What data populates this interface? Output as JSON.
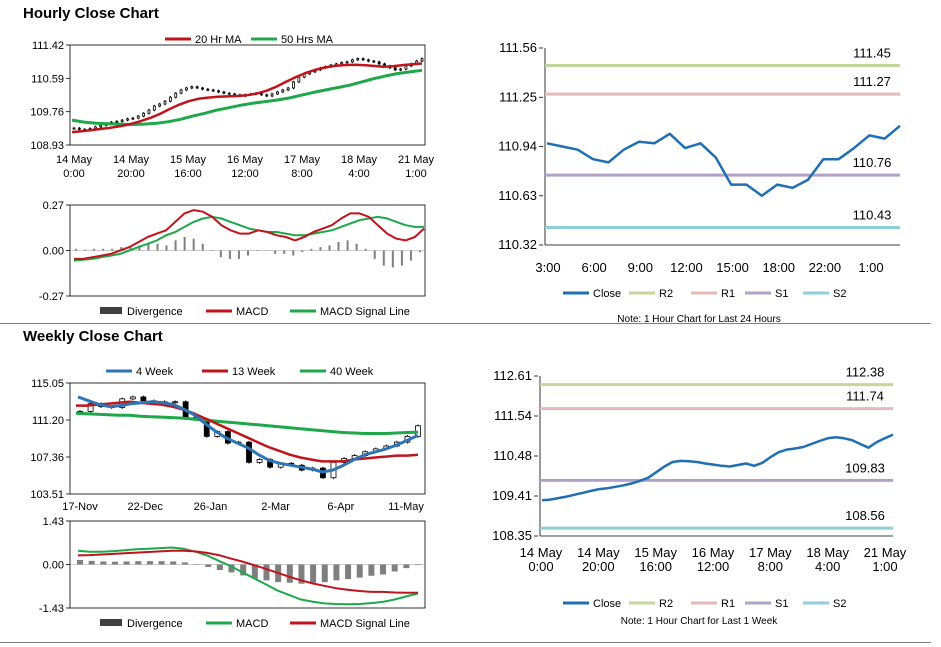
{
  "sections": {
    "hourly_title": "Hourly Close Chart",
    "weekly_title": "Weekly Close Chart"
  },
  "colors": {
    "red": "#c0141b",
    "green": "#1ea84a",
    "blue": "#2e75b6",
    "gray": "#7f7f7f",
    "candle_bar": "#404040",
    "r2": "#c4d79b",
    "r1": "#e6b9b8",
    "s1": "#b3a2c7",
    "s2": "#92cddc",
    "close": "#1f6fb2"
  },
  "chart_data": [
    {
      "id": "hourly-price",
      "type": "candlestick",
      "title": "Hourly Close Chart",
      "ylim": [
        108.93,
        111.42
      ],
      "yticks": [
        "111.42",
        "110.59",
        "109.76",
        "108.93"
      ],
      "xticks": [
        [
          "14 May",
          "0:00"
        ],
        [
          "14 May",
          "20:00"
        ],
        [
          "15 May",
          "16:00"
        ],
        [
          "16 May",
          "12:00"
        ],
        [
          "17 May",
          "8:00"
        ],
        [
          "18 May",
          "4:00"
        ],
        [
          "21 May",
          "1:00"
        ]
      ],
      "legend": [
        "20 Hr MA",
        "50 Hrs MA"
      ],
      "close": [
        109.35,
        109.32,
        109.3,
        109.34,
        109.38,
        109.42,
        109.45,
        109.5,
        109.52,
        109.55,
        109.58,
        109.6,
        109.65,
        109.72,
        109.8,
        109.9,
        109.95,
        110.02,
        110.12,
        110.22,
        110.3,
        110.35,
        110.38,
        110.35,
        110.32,
        110.3,
        110.28,
        110.25,
        110.22,
        110.2,
        110.18,
        110.15,
        110.18,
        110.2,
        110.22,
        110.18,
        110.15,
        110.2,
        110.25,
        110.3,
        110.35,
        110.5,
        110.62,
        110.7,
        110.75,
        110.8,
        110.85,
        110.88,
        110.92,
        110.95,
        110.98,
        111.0,
        111.05,
        111.08,
        111.05,
        111.02,
        111.0,
        110.95,
        110.9,
        110.85,
        110.8,
        110.82,
        110.9,
        110.95,
        111.02,
        111.08
      ],
      "ma20": [
        109.25,
        109.27,
        109.3,
        109.33,
        109.36,
        109.4,
        109.45,
        109.52,
        109.6,
        109.7,
        109.82,
        109.93,
        110.02,
        110.08,
        110.11,
        110.13,
        110.14,
        110.15,
        110.17,
        110.21,
        110.28,
        110.38,
        110.5,
        110.62,
        110.72,
        110.8,
        110.86,
        110.9,
        110.92,
        110.93,
        110.92,
        110.9,
        110.88,
        110.89,
        110.92,
        110.94,
        110.96
      ],
      "ma50": [
        109.55,
        109.5,
        109.47,
        109.46,
        109.45,
        109.44,
        109.45,
        109.47,
        109.51,
        109.57,
        109.65,
        109.72,
        109.8,
        109.86,
        109.92,
        109.97,
        110.01,
        110.05,
        110.1,
        110.17,
        110.24,
        110.3,
        110.36,
        110.42,
        110.5,
        110.58,
        110.65,
        110.71,
        110.75,
        110.79
      ]
    },
    {
      "id": "hourly-macd",
      "type": "macd",
      "ylim": [
        -0.27,
        0.27
      ],
      "yticks": [
        "0.27",
        "0.00",
        "-0.27"
      ],
      "legend": [
        "Divergence",
        "MACD",
        "MACD Signal Line"
      ],
      "macd": [
        -0.05,
        -0.05,
        -0.04,
        -0.03,
        -0.02,
        0.0,
        0.02,
        0.05,
        0.08,
        0.1,
        0.12,
        0.17,
        0.22,
        0.24,
        0.23,
        0.2,
        0.15,
        0.12,
        0.1,
        0.1,
        0.12,
        0.11,
        0.09,
        0.08,
        0.06,
        0.08,
        0.11,
        0.13,
        0.15,
        0.19,
        0.22,
        0.22,
        0.2,
        0.15,
        0.1,
        0.07,
        0.06,
        0.08,
        0.13
      ],
      "signal": [
        -0.06,
        -0.055,
        -0.05,
        -0.04,
        -0.03,
        -0.02,
        0.0,
        0.02,
        0.04,
        0.06,
        0.09,
        0.11,
        0.14,
        0.17,
        0.19,
        0.2,
        0.19,
        0.17,
        0.15,
        0.13,
        0.12,
        0.11,
        0.11,
        0.1,
        0.09,
        0.09,
        0.1,
        0.11,
        0.12,
        0.14,
        0.16,
        0.18,
        0.19,
        0.2,
        0.19,
        0.17,
        0.15,
        0.14,
        0.14
      ],
      "divergence": [
        0.01,
        0.005,
        0.01,
        0.01,
        0.01,
        0.02,
        0.02,
        0.03,
        0.04,
        0.04,
        0.03,
        0.06,
        0.08,
        0.07,
        0.04,
        0.0,
        -0.04,
        -0.05,
        -0.05,
        -0.03,
        0.0,
        0.0,
        -0.02,
        -0.02,
        -0.03,
        -0.01,
        0.01,
        0.02,
        0.03,
        0.05,
        0.06,
        0.04,
        0.01,
        -0.05,
        -0.09,
        -0.1,
        -0.09,
        -0.06,
        -0.01
      ]
    },
    {
      "id": "daily-levels",
      "type": "line",
      "ylim": [
        110.32,
        111.56
      ],
      "yticks": [
        "111.56",
        "111.25",
        "110.94",
        "110.63",
        "110.32"
      ],
      "xticks": [
        "3:00",
        "6:00",
        "9:00",
        "12:00",
        "15:00",
        "18:00",
        "22:00",
        "1:00"
      ],
      "levels": [
        {
          "name": "R2",
          "value": 111.45,
          "label": "111.45"
        },
        {
          "name": "R1",
          "value": 111.27,
          "label": "111.27"
        },
        {
          "name": "S1",
          "value": 110.76,
          "label": "110.76"
        },
        {
          "name": "S2",
          "value": 110.43,
          "label": "110.43"
        }
      ],
      "close": [
        110.96,
        110.94,
        110.92,
        110.86,
        110.84,
        110.92,
        110.97,
        110.96,
        111.02,
        110.93,
        110.96,
        110.87,
        110.7,
        110.7,
        110.63,
        110.7,
        110.68,
        110.73,
        110.86,
        110.86,
        110.93,
        111.01,
        110.99,
        111.07
      ],
      "legend": [
        "Close",
        "R2",
        "R1",
        "S1",
        "S2"
      ],
      "note": "Note: 1 Hour Chart for Last 24 Hours"
    },
    {
      "id": "weekly-price",
      "type": "candlestick",
      "title": "Weekly Close Chart",
      "ylim": [
        103.51,
        115.05
      ],
      "yticks": [
        "115.05",
        "111.20",
        "107.36",
        "103.51"
      ],
      "xticks": [
        "17-Nov",
        "22-Dec",
        "26-Jan",
        "2-Mar",
        "6-Apr",
        "11-May"
      ],
      "legend": [
        "4 Week",
        "13 Week",
        "40 Week"
      ],
      "close": [
        112.1,
        112.9,
        112.6,
        112.5,
        113.4,
        113.6,
        113.2,
        113.1,
        113.0,
        113.1,
        111.5,
        111.3,
        109.5,
        110.0,
        108.8,
        108.9,
        106.8,
        107.1,
        106.3,
        106.7,
        106.5,
        106.0,
        106.2,
        105.2,
        106.8,
        107.2,
        107.5,
        107.9,
        108.2,
        108.5,
        108.9,
        109.5,
        110.6
      ],
      "wk4": [
        113.6,
        113.2,
        112.8,
        112.6,
        112.7,
        112.9,
        113.0,
        113.1,
        113.0,
        112.8,
        112.3,
        111.7,
        110.8,
        110.0,
        109.3,
        108.8,
        108.3,
        107.6,
        107.0,
        106.7,
        106.5,
        106.3,
        106.1,
        105.8,
        106.0,
        106.5,
        107.1,
        107.6,
        107.9,
        108.2,
        108.6,
        109.1,
        109.6
      ],
      "wk13": [
        112.7,
        112.7,
        112.8,
        112.9,
        113.0,
        113.1,
        113.0,
        112.9,
        112.8,
        112.6,
        112.3,
        111.9,
        111.4,
        110.9,
        110.4,
        109.9,
        109.4,
        108.9,
        108.4,
        108.0,
        107.6,
        107.3,
        107.1,
        106.9,
        106.9,
        106.9,
        107.1,
        107.2,
        107.3,
        107.4,
        107.5,
        107.5,
        107.6
      ],
      "wk40": [
        111.9,
        111.85,
        111.8,
        111.75,
        111.7,
        111.7,
        111.6,
        111.55,
        111.5,
        111.45,
        111.4,
        111.3,
        111.2,
        111.1,
        111.0,
        110.9,
        110.8,
        110.7,
        110.6,
        110.5,
        110.4,
        110.3,
        110.2,
        110.1,
        110.0,
        109.9,
        109.85,
        109.8,
        109.8,
        109.8,
        109.85,
        109.9,
        109.95
      ]
    },
    {
      "id": "weekly-macd",
      "type": "macd",
      "ylim": [
        -1.43,
        1.43
      ],
      "yticks": [
        "1.43",
        "0.00",
        "-1.43"
      ],
      "legend": [
        "Divergence",
        "MACD",
        "MACD Signal Line"
      ],
      "macd": [
        0.45,
        0.42,
        0.42,
        0.44,
        0.47,
        0.5,
        0.52,
        0.54,
        0.56,
        0.52,
        0.42,
        0.3,
        0.12,
        -0.05,
        -0.25,
        -0.45,
        -0.65,
        -0.85,
        -1.0,
        -1.15,
        -1.22,
        -1.28,
        -1.3,
        -1.31,
        -1.3,
        -1.27,
        -1.23,
        -1.15,
        -1.05,
        -0.95
      ],
      "signal": [
        0.3,
        0.31,
        0.33,
        0.35,
        0.37,
        0.39,
        0.41,
        0.43,
        0.45,
        0.45,
        0.43,
        0.38,
        0.31,
        0.2,
        0.1,
        -0.02,
        -0.14,
        -0.27,
        -0.4,
        -0.52,
        -0.62,
        -0.7,
        -0.78,
        -0.83,
        -0.87,
        -0.9,
        -0.9,
        -0.92,
        -0.93,
        -0.93
      ],
      "divergence": [
        0.15,
        0.12,
        0.1,
        0.09,
        0.1,
        0.11,
        0.11,
        0.11,
        0.1,
        0.07,
        0.0,
        -0.08,
        -0.18,
        -0.26,
        -0.36,
        -0.46,
        -0.52,
        -0.58,
        -0.6,
        -0.63,
        -0.6,
        -0.58,
        -0.52,
        -0.48,
        -0.43,
        -0.37,
        -0.33,
        -0.23,
        -0.12,
        -0.02
      ],
      "bar_count": 21
    },
    {
      "id": "weekly-levels",
      "type": "line",
      "ylim": [
        108.35,
        112.61
      ],
      "yticks": [
        "112.61",
        "111.54",
        "110.48",
        "109.41",
        "108.35"
      ],
      "xticks": [
        [
          "14 May",
          "0:00"
        ],
        [
          "14 May",
          "20:00"
        ],
        [
          "15 May",
          "16:00"
        ],
        [
          "16 May",
          "12:00"
        ],
        [
          "17 May",
          "8:00"
        ],
        [
          "18 May",
          "4:00"
        ],
        [
          "21 May",
          "1:00"
        ]
      ],
      "levels": [
        {
          "name": "R2",
          "value": 112.38,
          "label": "112.38"
        },
        {
          "name": "R1",
          "value": 111.74,
          "label": "111.74"
        },
        {
          "name": "S1",
          "value": 109.83,
          "label": "109.83"
        },
        {
          "name": "S2",
          "value": 108.56,
          "label": "108.56"
        }
      ],
      "close": [
        109.3,
        109.32,
        109.36,
        109.4,
        109.45,
        109.5,
        109.55,
        109.6,
        109.62,
        109.66,
        109.7,
        109.75,
        109.82,
        109.9,
        110.05,
        110.2,
        110.32,
        110.35,
        110.34,
        110.32,
        110.28,
        110.25,
        110.22,
        110.2,
        110.24,
        110.28,
        110.22,
        110.3,
        110.45,
        110.58,
        110.65,
        110.68,
        110.72,
        110.8,
        110.88,
        110.95,
        110.98,
        110.95,
        110.9,
        110.8,
        110.7,
        110.85,
        110.95,
        111.05
      ],
      "legend": [
        "Close",
        "R2",
        "R1",
        "S1",
        "S2"
      ],
      "note": "Note: 1 Hour Chart for Last 1 Week"
    }
  ]
}
